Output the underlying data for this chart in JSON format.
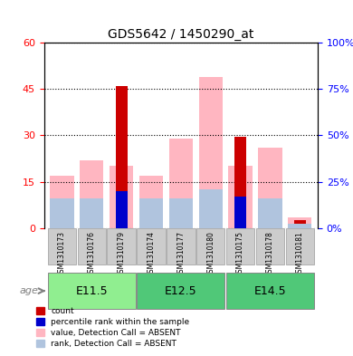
{
  "title": "GDS5642 / 1450290_at",
  "samples": [
    "GSM1310173",
    "GSM1310176",
    "GSM1310179",
    "GSM1310174",
    "GSM1310177",
    "GSM1310180",
    "GSM1310175",
    "GSM1310178",
    "GSM1310181"
  ],
  "groups": [
    {
      "label": "E11.5",
      "indices": [
        0,
        1,
        2
      ],
      "color": "#90EE90"
    },
    {
      "label": "E12.5",
      "indices": [
        3,
        4,
        5
      ],
      "color": "#3CB371"
    },
    {
      "label": "E14.5",
      "indices": [
        6,
        7,
        8
      ],
      "color": "#3CB371"
    }
  ],
  "count_values": [
    0,
    0,
    46,
    0,
    0,
    0,
    29.5,
    0,
    2.5
  ],
  "rank_values": [
    0,
    0,
    20,
    0,
    0,
    0,
    17,
    0,
    0
  ],
  "absent_value_values": [
    17,
    22,
    20,
    17,
    29,
    49,
    20,
    26,
    3.5
  ],
  "absent_rank_values": [
    16,
    16,
    0,
    16,
    16,
    21,
    0,
    16,
    2.5
  ],
  "left_ylim": [
    0,
    60
  ],
  "right_ylim": [
    0,
    100
  ],
  "left_yticks": [
    0,
    15,
    30,
    45,
    60
  ],
  "right_yticks": [
    0,
    25,
    50,
    75,
    100
  ],
  "left_yticklabels": [
    "0",
    "15",
    "30",
    "45",
    "60"
  ],
  "right_yticklabels": [
    "0%",
    "25%",
    "50%",
    "75%",
    "100%"
  ],
  "count_color": "#CC0000",
  "rank_color": "#0000CC",
  "absent_value_color": "#FFB6C1",
  "absent_rank_color": "#B0C4DE",
  "group_colors": [
    "#90EE90",
    "#50C050",
    "#50C050"
  ],
  "bar_width": 0.4,
  "figsize": [
    3.9,
    3.93
  ],
  "dpi": 100,
  "age_label": "age",
  "legend_items": [
    {
      "label": "count",
      "color": "#CC0000"
    },
    {
      "label": "percentile rank within the sample",
      "color": "#0000CC"
    },
    {
      "label": "value, Detection Call = ABSENT",
      "color": "#FFB6C1"
    },
    {
      "label": "rank, Detection Call = ABSENT",
      "color": "#B0C4DE"
    }
  ],
  "sample_box_color": "#CCCCCC",
  "group_border_color": "#999999"
}
